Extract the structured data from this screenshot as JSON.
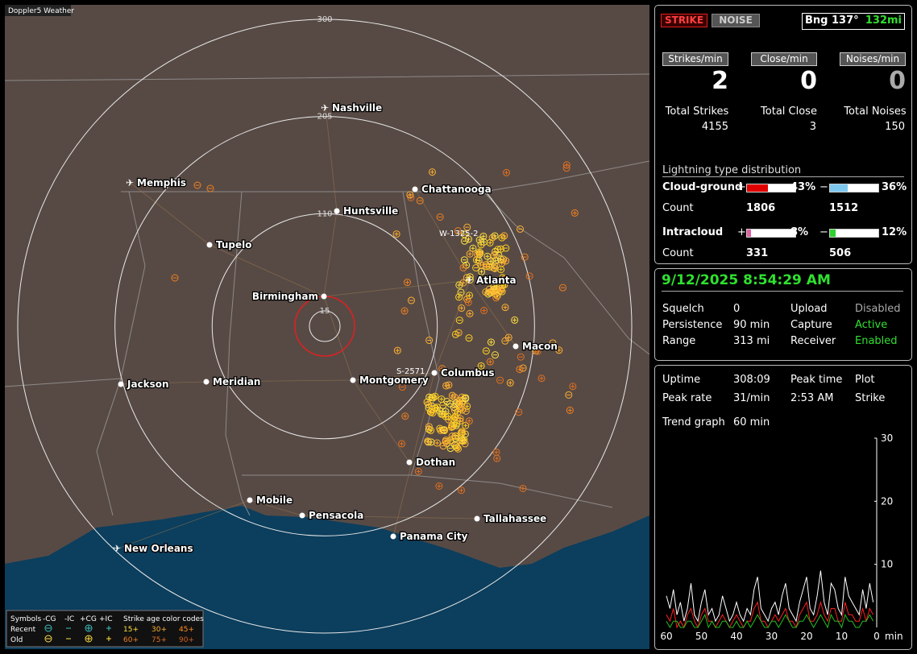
{
  "app_title": "Doppler5 Weather",
  "map": {
    "range_rings": [
      300,
      205,
      110,
      15
    ],
    "cities": [
      "Nashville",
      "Chattanooga",
      "Memphis",
      "Huntsville",
      "Tupelo",
      "Atlanta",
      "Birmingham",
      "Macon",
      "Columbus",
      "Jackson",
      "Meridian",
      "Montgomery",
      "Dothan",
      "Mobile",
      "Pensacola",
      "Tallahassee",
      "Panama City",
      "New Orleans"
    ],
    "stations": [
      "W-1325-2",
      "S-2571"
    ]
  },
  "legend": {
    "header": [
      "Symbols",
      "-CG",
      "-IC",
      "+CG",
      "+IC"
    ],
    "age_title": "Strike age color codes",
    "rows": [
      {
        "label": "Recent",
        "ages": [
          "15+",
          "30+",
          "45+"
        ]
      },
      {
        "label": "Old",
        "ages": [
          "60+",
          "75+",
          "90+"
        ]
      }
    ]
  },
  "status": {
    "buttons": [
      "STRIKE",
      "NOISE"
    ],
    "bearing": "Bng 137°",
    "distance": "132mi"
  },
  "rates": [
    {
      "label": "Strikes/min",
      "value": 2
    },
    {
      "label": "Close/min",
      "value": 0
    },
    {
      "label": "Noises/min",
      "value": 0
    }
  ],
  "totals": [
    {
      "label": "Total Strikes",
      "value": 4155
    },
    {
      "label": "Total Close",
      "value": 3
    },
    {
      "label": "Total Noises",
      "value": 150
    }
  ],
  "distribution": {
    "title": "Lightning type distribution",
    "count_label": "Count",
    "signs": [
      "+",
      "−"
    ],
    "rows": [
      {
        "label": "Cloud-ground",
        "positive": {
          "value": 43,
          "label": "43%"
        },
        "negative": {
          "value": 36,
          "label": "36%"
        },
        "counts": [
          1806,
          1512
        ]
      },
      {
        "label": "Intracloud",
        "positive": {
          "value": 8,
          "label": "8%"
        },
        "negative": {
          "value": 12,
          "label": "12%"
        },
        "counts": [
          331,
          506
        ]
      }
    ]
  },
  "clock": "9/12/2025 8:54:29 AM",
  "settings": [
    [
      "Squelch",
      "0"
    ],
    [
      "Persistence",
      "90 min"
    ],
    [
      "Range",
      "313 mi"
    ]
  ],
  "services": [
    [
      "Upload",
      "Disabled"
    ],
    [
      "Capture",
      "Active"
    ],
    [
      "Receiver",
      "Enabled"
    ]
  ],
  "stats": {
    "uptime": [
      "Uptime",
      "308:09"
    ],
    "peak_rate": [
      "Peak rate",
      "31/min"
    ],
    "peak_time": [
      "Peak time",
      "2:53 AM"
    ],
    "plot": [
      "Plot",
      "Strike"
    ],
    "trend": [
      "Trend graph",
      "60 min"
    ]
  },
  "trend_chart": {
    "type": "line",
    "ylim": [
      0,
      30
    ],
    "yticks": [
      10,
      20,
      30
    ],
    "xlim": [
      60,
      0
    ],
    "xticks": [
      60,
      50,
      40,
      30,
      20,
      10,
      0
    ],
    "x_unit": "min",
    "x": [
      60,
      59,
      58,
      57,
      56,
      55,
      54,
      53,
      52,
      51,
      50,
      49,
      48,
      47,
      46,
      45,
      44,
      43,
      42,
      41,
      40,
      39,
      38,
      37,
      36,
      35,
      34,
      33,
      32,
      31,
      30,
      29,
      28,
      27,
      26,
      25,
      24,
      23,
      22,
      21,
      20,
      19,
      18,
      17,
      16,
      15,
      14,
      13,
      12,
      11,
      10,
      9,
      8,
      7,
      6,
      5,
      4,
      3,
      2,
      1
    ],
    "series": [
      {
        "color": "#ffffff",
        "values": [
          5,
          3,
          6,
          2,
          4,
          1,
          3,
          7,
          2,
          1,
          4,
          6,
          2,
          3,
          1,
          2,
          5,
          3,
          1,
          2,
          4,
          2,
          1,
          3,
          2,
          6,
          8,
          3,
          2,
          1,
          3,
          4,
          2,
          5,
          7,
          3,
          2,
          1,
          4,
          6,
          8,
          3,
          2,
          5,
          9,
          4,
          2,
          7,
          6,
          3,
          2,
          8,
          5,
          4,
          3,
          2,
          6,
          3,
          7,
          4
        ]
      },
      {
        "color": "#ff2020",
        "values": [
          2,
          1,
          3,
          0,
          1,
          0,
          2,
          3,
          1,
          0,
          2,
          3,
          1,
          1,
          0,
          1,
          2,
          1,
          0,
          1,
          2,
          1,
          0,
          1,
          1,
          3,
          4,
          1,
          1,
          0,
          1,
          2,
          1,
          2,
          3,
          1,
          1,
          0,
          2,
          3,
          4,
          1,
          1,
          2,
          4,
          2,
          1,
          3,
          3,
          1,
          1,
          4,
          2,
          2,
          1,
          1,
          3,
          1,
          3,
          2
        ]
      },
      {
        "color": "#20c020",
        "values": [
          1,
          0,
          1,
          1,
          0,
          0,
          1,
          1,
          0,
          0,
          1,
          2,
          0,
          1,
          0,
          0,
          1,
          1,
          0,
          0,
          1,
          0,
          0,
          1,
          0,
          1,
          2,
          1,
          0,
          0,
          1,
          1,
          0,
          1,
          2,
          1,
          0,
          0,
          1,
          1,
          2,
          1,
          0,
          1,
          2,
          1,
          0,
          2,
          1,
          1,
          0,
          2,
          1,
          1,
          0,
          0,
          1,
          1,
          2,
          1
        ]
      }
    ]
  }
}
